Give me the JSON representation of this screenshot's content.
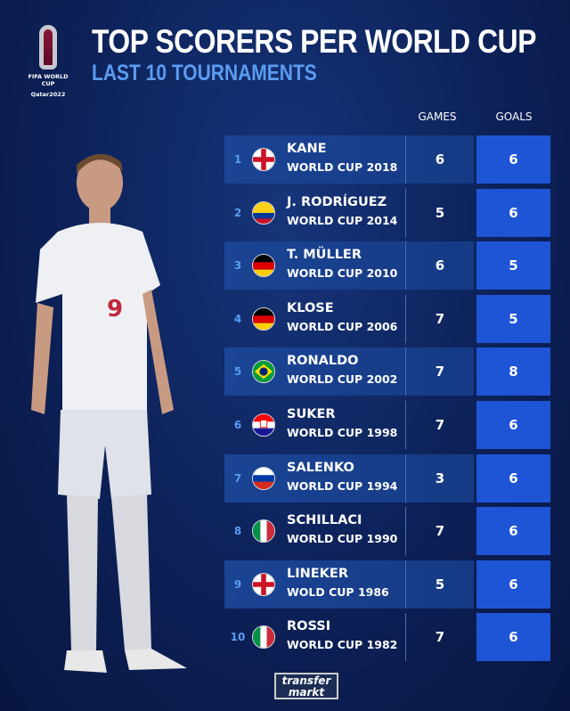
{
  "logo": {
    "line1": "FIFA WORLD CUP",
    "line2": "Qatar2022"
  },
  "title": "TOP SCORERS PER WORLD CUP",
  "subtitle": "LAST 10 TOURNAMENTS",
  "columns": {
    "games": "GAMES",
    "goals": "GOALS"
  },
  "rows": [
    {
      "rank": "1",
      "name": "KANE",
      "cup": "WORLD CUP 2018",
      "games": "6",
      "goals": "6",
      "flag": "england"
    },
    {
      "rank": "2",
      "name": "J. RODRÍGUEZ",
      "cup": "WORLD CUP 2014",
      "games": "5",
      "goals": "6",
      "flag": "colombia"
    },
    {
      "rank": "3",
      "name": "T. MÜLLER",
      "cup": "WORLD CUP 2010",
      "games": "6",
      "goals": "5",
      "flag": "germany"
    },
    {
      "rank": "4",
      "name": "KLOSE",
      "cup": "WORLD CUP 2006",
      "games": "7",
      "goals": "5",
      "flag": "germany"
    },
    {
      "rank": "5",
      "name": "RONALDO",
      "cup": "WORLD CUP 2002",
      "games": "7",
      "goals": "8",
      "flag": "brazil"
    },
    {
      "rank": "6",
      "name": "SUKER",
      "cup": "WORLD CUP 1998",
      "games": "7",
      "goals": "6",
      "flag": "croatia"
    },
    {
      "rank": "7",
      "name": "SALENKO",
      "cup": "WORLD CUP 1994",
      "games": "3",
      "goals": "6",
      "flag": "russia"
    },
    {
      "rank": "8",
      "name": "SCHILLACI",
      "cup": "WORLD CUP 1990",
      "games": "7",
      "goals": "6",
      "flag": "italy"
    },
    {
      "rank": "9",
      "name": "LINEKER",
      "cup": "WOLD CUP 1986",
      "games": "5",
      "goals": "6",
      "flag": "england"
    },
    {
      "rank": "10",
      "name": "ROSSI",
      "cup": "WORLD CUP 1982",
      "games": "7",
      "goals": "6",
      "flag": "italy"
    }
  ],
  "player": {
    "shirt_number": "9"
  },
  "footer": {
    "brand_line1": "transfer",
    "brand_line2": "markt"
  },
  "colors": {
    "accent": "#5b9cf0",
    "goals_box": "#1e54d6",
    "background": "#0d2158"
  }
}
